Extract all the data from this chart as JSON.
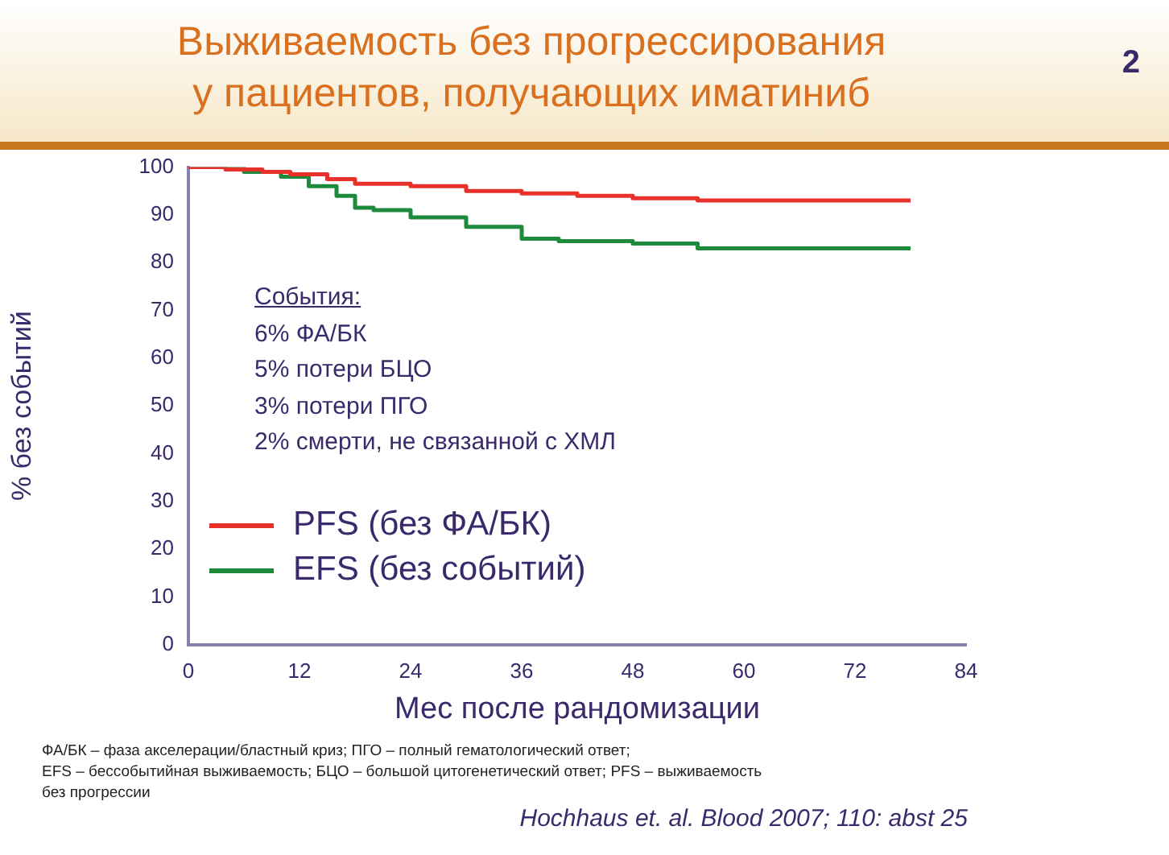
{
  "chart_data": {
    "type": "step",
    "title": "Выживаемость без прогрессирования\nу пациентов, получающих иматиниб",
    "xlabel": "Мес после рандомизации",
    "ylabel": "% без событий",
    "xlim": [
      0,
      84
    ],
    "xticks": [
      0,
      12,
      24,
      36,
      48,
      60,
      72,
      84
    ],
    "ylim": [
      0,
      100
    ],
    "yticks": [
      0,
      10,
      20,
      30,
      40,
      50,
      60,
      70,
      80,
      90,
      100
    ],
    "series": [
      {
        "name": "PFS (без ФА/БК)",
        "color": "#e8312a",
        "x": [
          0,
          4,
          8,
          11,
          15,
          18,
          24,
          30,
          36,
          42,
          48,
          55,
          78
        ],
        "values": [
          100,
          99.5,
          99,
          98.5,
          97.5,
          96.5,
          96,
          95,
          94.5,
          94,
          93.5,
          93,
          93
        ]
      },
      {
        "name": "EFS (без событий)",
        "color": "#1e8a3c",
        "x": [
          0,
          6,
          10,
          13,
          16,
          18,
          20,
          24,
          30,
          36,
          40,
          48,
          55,
          78
        ],
        "values": [
          100,
          99,
          98,
          96,
          94,
          91.5,
          91,
          89.5,
          87.5,
          85,
          84.5,
          84,
          83,
          83
        ]
      }
    ],
    "legend": "left",
    "marker": "none",
    "grid": false,
    "annotations": [
      "События:\n6% ФА/БК\n5% потери БЦО\n3% потери ПГО\n2% смерти, не связанной с ХМЛ",
      "2",
      "ФА/БК – фаза акселерации/бластный криз; ПГО – полный гематологический ответ;\nEFS – бессобытийная выживаемость; БЦО – большой цитогенетический ответ; PFS – выживаемость\nбез прогрессии",
      "Hochhaus et. al.  Blood 2007; 110: abst 25"
    ]
  }
}
